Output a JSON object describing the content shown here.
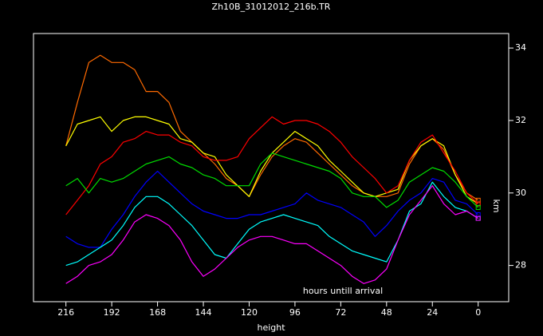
{
  "chart_data": {
    "type": "line",
    "title": "Zh10B_31012012_216b.TR",
    "x_label": "height",
    "y_label": "km",
    "annotation": "hours untill arrival",
    "x": [
      216,
      210,
      204,
      198,
      192,
      186,
      180,
      174,
      168,
      162,
      156,
      150,
      144,
      138,
      132,
      126,
      120,
      114,
      108,
      102,
      96,
      90,
      84,
      78,
      72,
      66,
      60,
      54,
      48,
      42,
      36,
      30,
      24,
      18,
      12,
      6,
      0
    ],
    "xlim": [
      233,
      -16
    ],
    "xticks": [
      216,
      192,
      168,
      144,
      120,
      96,
      72,
      48,
      24,
      0
    ],
    "ylim": [
      27,
      34.4
    ],
    "yticks": [
      28,
      30,
      32,
      34
    ],
    "y_axis_side": "right",
    "series": [
      {
        "color": "#ff6a00",
        "values": [
          31.3,
          32.5,
          33.6,
          33.8,
          33.6,
          33.6,
          33.4,
          32.8,
          32.8,
          32.5,
          31.7,
          31.4,
          31.1,
          30.8,
          30.4,
          30.2,
          29.9,
          30.5,
          31.0,
          31.3,
          31.5,
          31.4,
          31.1,
          30.8,
          30.5,
          30.2,
          30.0,
          29.9,
          29.9,
          30.0,
          30.8,
          31.3,
          31.5,
          31.2,
          30.5,
          30.0,
          29.8
        ]
      },
      {
        "color": "#ffff00",
        "values": [
          31.3,
          31.9,
          32.0,
          32.1,
          31.7,
          32.0,
          32.1,
          32.1,
          32.0,
          31.9,
          31.5,
          31.4,
          31.1,
          31.0,
          30.5,
          30.2,
          29.9,
          30.6,
          31.1,
          31.4,
          31.7,
          31.5,
          31.3,
          30.9,
          30.6,
          30.3,
          30.0,
          29.9,
          30.0,
          30.1,
          30.9,
          31.3,
          31.5,
          31.3,
          30.5,
          29.9,
          29.7
        ]
      },
      {
        "color": "#ff0000",
        "values": [
          29.4,
          29.8,
          30.2,
          30.8,
          31.0,
          31.4,
          31.5,
          31.7,
          31.6,
          31.6,
          31.4,
          31.3,
          31.0,
          30.9,
          30.9,
          31.0,
          31.5,
          31.8,
          32.1,
          31.9,
          32.0,
          32.0,
          31.9,
          31.7,
          31.4,
          31.0,
          30.7,
          30.4,
          30.0,
          30.2,
          30.9,
          31.4,
          31.6,
          31.1,
          30.6,
          30.0,
          29.7
        ]
      },
      {
        "color": "#00dd00",
        "values": [
          30.2,
          30.4,
          30.0,
          30.4,
          30.3,
          30.4,
          30.6,
          30.8,
          30.9,
          31.0,
          30.8,
          30.7,
          30.5,
          30.4,
          30.2,
          30.2,
          30.2,
          30.8,
          31.1,
          31.0,
          30.9,
          30.8,
          30.7,
          30.6,
          30.4,
          30.0,
          29.9,
          29.9,
          29.6,
          29.8,
          30.3,
          30.5,
          30.7,
          30.6,
          30.3,
          29.9,
          29.6
        ]
      },
      {
        "color": "#0000ff",
        "values": [
          28.8,
          28.6,
          28.5,
          28.5,
          29.0,
          29.4,
          29.9,
          30.3,
          30.6,
          30.3,
          30.0,
          29.7,
          29.5,
          29.4,
          29.3,
          29.3,
          29.4,
          29.4,
          29.5,
          29.6,
          29.7,
          30.0,
          29.8,
          29.7,
          29.6,
          29.4,
          29.2,
          28.8,
          29.1,
          29.5,
          29.8,
          30.0,
          30.4,
          30.3,
          29.8,
          29.7,
          29.4
        ]
      },
      {
        "color": "#00ffff",
        "values": [
          28.0,
          28.1,
          28.3,
          28.5,
          28.7,
          29.1,
          29.6,
          29.9,
          29.9,
          29.7,
          29.4,
          29.1,
          28.7,
          28.3,
          28.2,
          28.6,
          29.0,
          29.2,
          29.3,
          29.4,
          29.3,
          29.2,
          29.1,
          28.8,
          28.6,
          28.4,
          28.3,
          28.2,
          28.1,
          28.7,
          29.5,
          29.7,
          30.3,
          29.9,
          29.6,
          29.5,
          29.3
        ]
      },
      {
        "color": "#ff00ff",
        "values": [
          27.5,
          27.7,
          28.0,
          28.1,
          28.3,
          28.7,
          29.2,
          29.4,
          29.3,
          29.1,
          28.7,
          28.1,
          27.7,
          27.9,
          28.2,
          28.5,
          28.7,
          28.8,
          28.8,
          28.7,
          28.6,
          28.6,
          28.4,
          28.2,
          28.0,
          27.7,
          27.5,
          27.6,
          27.9,
          28.7,
          29.4,
          29.8,
          30.2,
          29.7,
          29.4,
          29.5,
          29.3
        ]
      }
    ]
  }
}
